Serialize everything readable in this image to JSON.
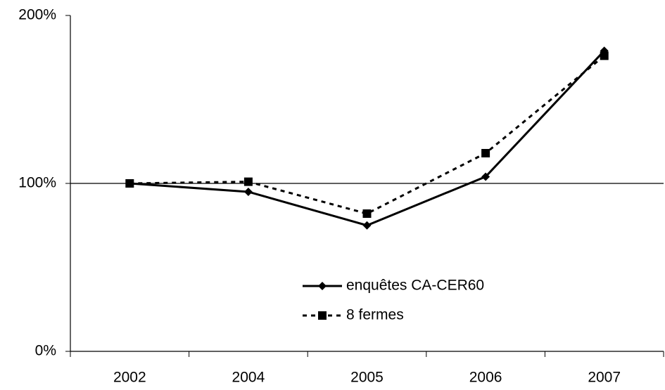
{
  "chart_data": {
    "type": "line",
    "categories": [
      "2002",
      "2004",
      "2005",
      "2006",
      "2007"
    ],
    "series": [
      {
        "name": "enquêtes CA-CER60",
        "color": "#000000",
        "line_style": "solid",
        "marker": "diamond",
        "values": [
          100,
          95,
          75,
          104,
          179
        ]
      },
      {
        "name": "8 fermes",
        "color": "#000000",
        "line_style": "dashed",
        "marker": "square",
        "values": [
          100,
          101,
          82,
          118,
          176
        ]
      }
    ],
    "ylim": [
      0,
      200
    ],
    "yticks": [
      {
        "value": 0,
        "label": "0%"
      },
      {
        "value": 100,
        "label": "100%"
      },
      {
        "value": 200,
        "label": "200%"
      }
    ],
    "reference_line": 100,
    "legend": "lower center"
  }
}
